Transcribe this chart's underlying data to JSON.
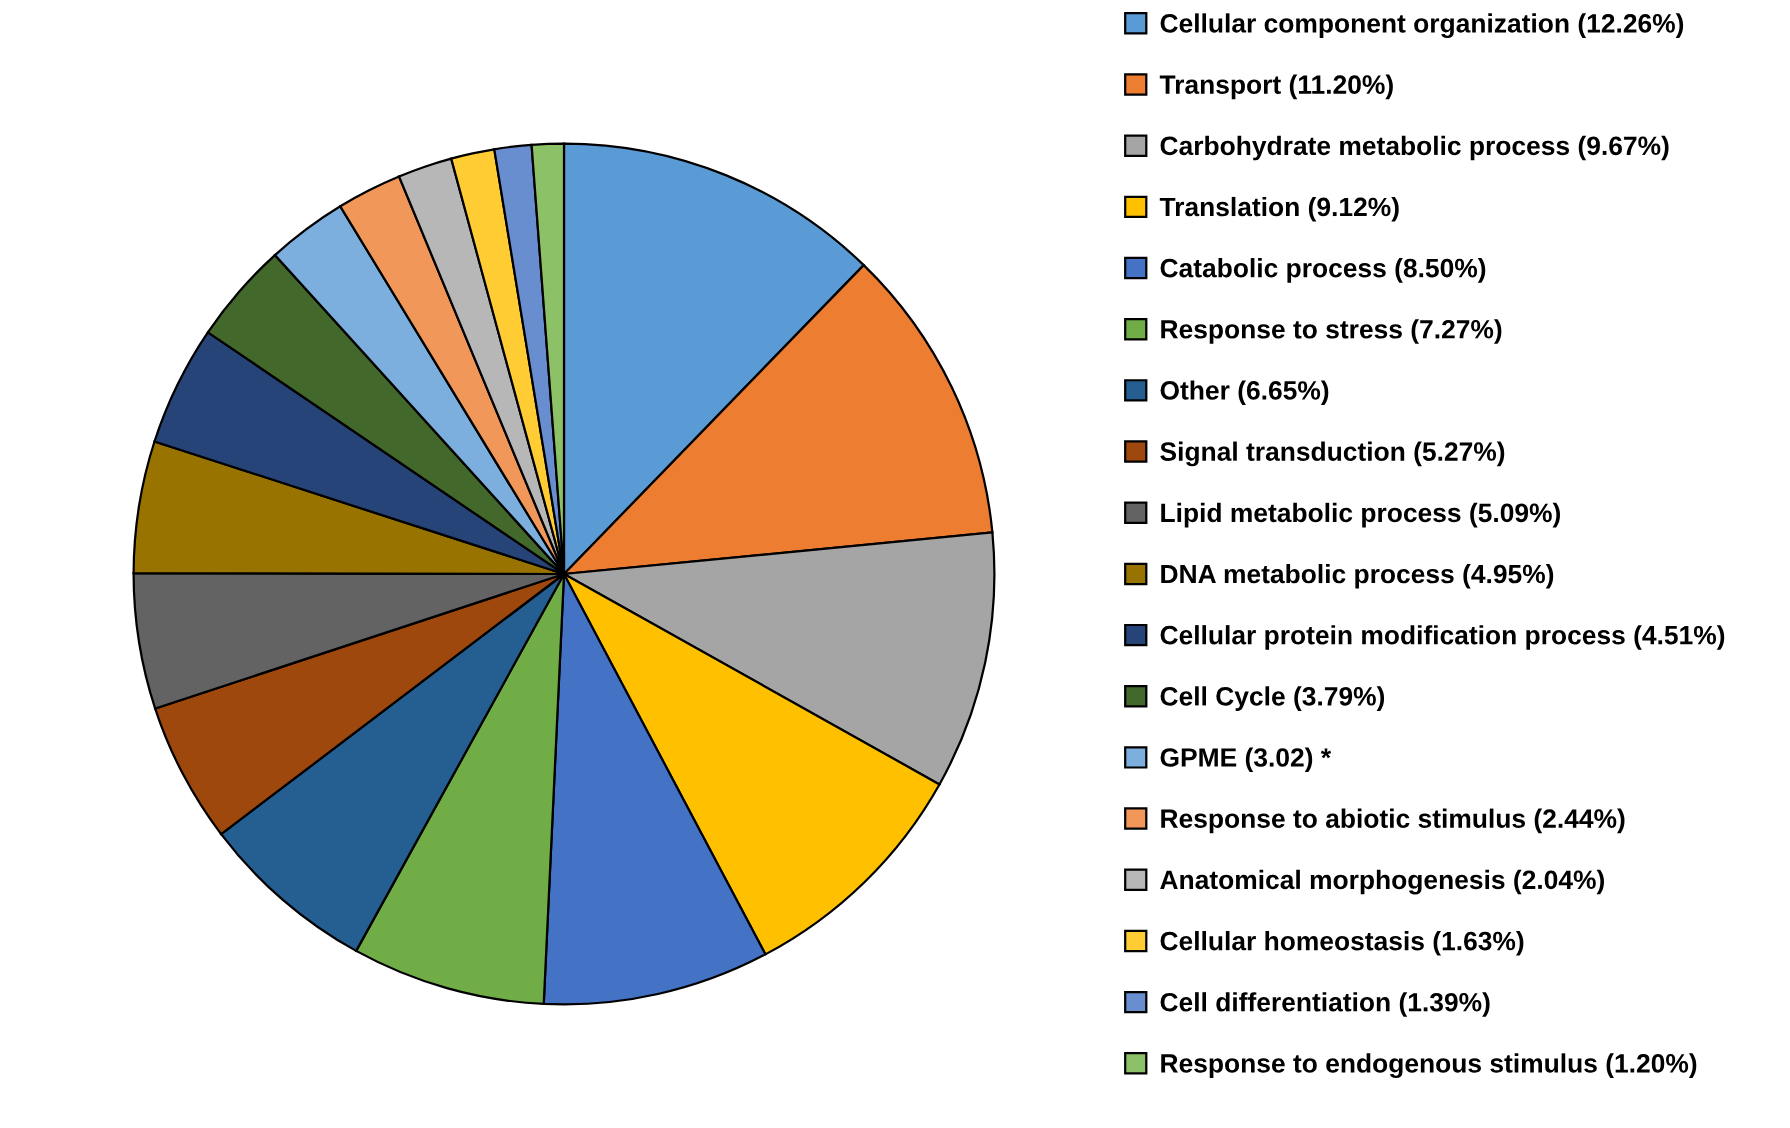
{
  "chart_data": {
    "type": "pie",
    "legend": "right",
    "categories": [
      "Cellular component organization (12.26%)",
      "Transport (11.20%)",
      "Carbohydrate metabolic process (9.67%)",
      "Translation (9.12%)",
      "Catabolic process (8.50%)",
      "Response to stress (7.27%)",
      "Other (6.65%)",
      "Signal transduction (5.27%)",
      "Lipid metabolic process (5.09%)",
      "DNA metabolic process (4.95%)",
      "Cellular protein modification process (4.51%)",
      "Cell Cycle (3.79%)",
      "GPME (3.02) *",
      "Response to abiotic stimulus (2.44%)",
      "Anatomical morphogenesis (2.04%)",
      "Cellular homeostasis (1.63%)",
      "Cell differentiation (1.39%)",
      "Response to endogenous stimulus (1.20%)"
    ],
    "values": [
      12.26,
      11.2,
      9.67,
      9.12,
      8.5,
      7.27,
      6.65,
      5.27,
      5.09,
      4.95,
      4.51,
      3.79,
      3.02,
      2.44,
      2.04,
      1.63,
      1.39,
      1.2
    ],
    "colors": [
      "#5b9bd5",
      "#ed7d31",
      "#a5a5a5",
      "#ffc000",
      "#4472c4",
      "#70ad47",
      "#255e91",
      "#9e480e",
      "#636363",
      "#997300",
      "#264478",
      "#43682b",
      "#7cafdd",
      "#f1975a",
      "#b7b7b7",
      "#ffcd33",
      "#698ed0",
      "#8cc168"
    ]
  }
}
